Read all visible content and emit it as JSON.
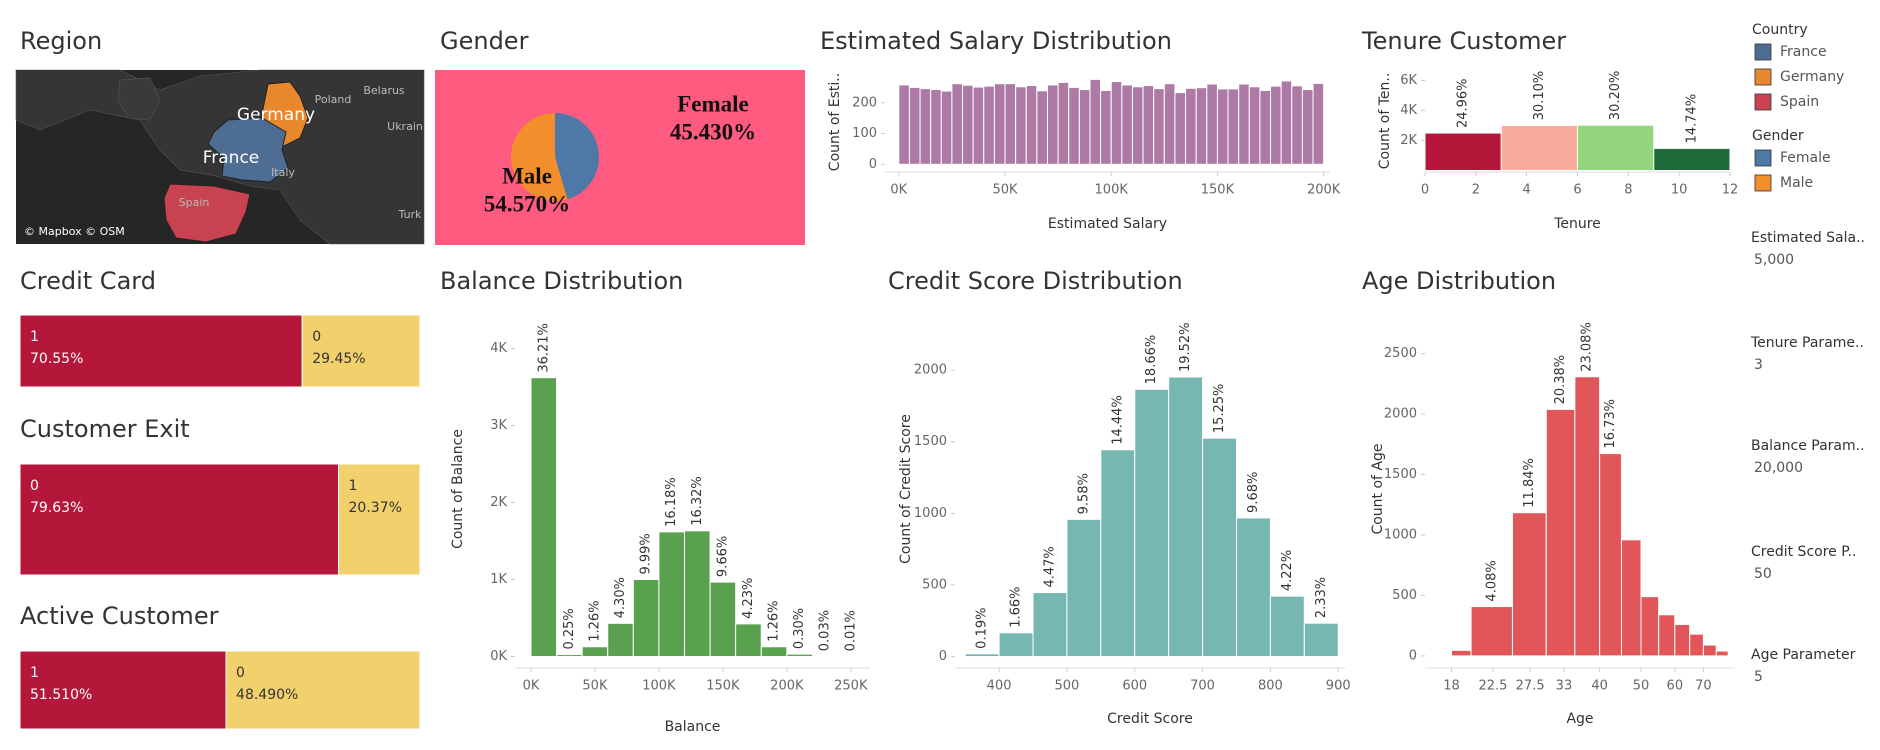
{
  "map": {
    "title": "Region",
    "labels": [
      "Germany",
      "France",
      "Poland",
      "Belarus",
      "Ukrain",
      "Italy",
      "Spain",
      "Turk"
    ],
    "attribution": "© Mapbox © OSM"
  },
  "legends": [
    {
      "title": "Country",
      "items": [
        {
          "name": "France",
          "color": "#4e6d93"
        },
        {
          "name": "Germany",
          "color": "#e8872b"
        },
        {
          "name": "Spain",
          "color": "#c8424f"
        }
      ]
    },
    {
      "title": "Gender",
      "items": [
        {
          "name": "Female",
          "color": "#4e79a7"
        },
        {
          "name": "Male",
          "color": "#f28e2b"
        }
      ]
    }
  ],
  "parameters": [
    {
      "label": "Estimated Sala..",
      "value": "5,000"
    },
    {
      "label": "Tenure Parame..",
      "value": "3"
    },
    {
      "label": "Balance Param..",
      "value": "20,000"
    },
    {
      "label": "Credit Score P..",
      "value": "50"
    },
    {
      "label": "Age Parameter",
      "value": "5"
    }
  ],
  "chart_data": [
    {
      "type": "pie",
      "title": "Gender",
      "categories": [
        "Female",
        "Male"
      ],
      "values": [
        45.43,
        54.57
      ],
      "value_labels": [
        "45.430%",
        "54.570%"
      ],
      "colors": [
        "#4e79a7",
        "#f28e2b"
      ]
    },
    {
      "type": "histogram",
      "title": "Estimated Salary Distribution",
      "x_label": "Estimated Salary",
      "y_label": "Count of Esti..",
      "color": "#ad7aa6",
      "bins": [
        0,
        5000,
        10000,
        15000,
        20000,
        25000,
        30000,
        35000,
        40000,
        45000,
        50000,
        55000,
        60000,
        65000,
        70000,
        75000,
        80000,
        85000,
        90000,
        95000,
        100000,
        105000,
        110000,
        115000,
        120000,
        125000,
        130000,
        135000,
        140000,
        145000,
        150000,
        155000,
        160000,
        165000,
        170000,
        175000,
        180000,
        185000,
        190000,
        195000,
        200000
      ],
      "values": [
        258,
        250,
        246,
        243,
        238,
        262,
        257,
        251,
        254,
        262,
        262,
        252,
        256,
        239,
        258,
        266,
        250,
        243,
        276,
        240,
        269,
        258,
        252,
        256,
        246,
        262,
        233,
        247,
        249,
        261,
        245,
        245,
        261,
        252,
        240,
        254,
        271,
        255,
        243,
        263
      ],
      "xlim": [
        -6500,
        203000
      ],
      "ylim": [
        -25,
        300
      ],
      "xticks": [
        {
          "value": 0,
          "label": "0K"
        },
        {
          "value": 50000,
          "label": "50K"
        },
        {
          "value": 100000,
          "label": "100K"
        },
        {
          "value": 150000,
          "label": "150K"
        },
        {
          "value": 200000,
          "label": "200K"
        }
      ],
      "yticks": [
        0,
        100,
        200
      ]
    },
    {
      "type": "histogram",
      "title": "Tenure Customer",
      "x_label": "Tenure",
      "y_label": "Count of Ten..",
      "colors": [
        "#b5173a",
        "#fbab9b",
        "#93d57f",
        "#1f6b3a"
      ],
      "bins": [
        0,
        3,
        6,
        9,
        12
      ],
      "values": [
        2496,
        3010,
        3020,
        1474
      ],
      "value_labels": [
        "24.96%",
        "30.10%",
        "30.20%",
        "14.74%"
      ],
      "xlim": [
        0,
        12
      ],
      "ylim": [
        -100,
        6700
      ],
      "xticks": [
        0,
        2,
        4,
        6,
        8,
        10,
        12
      ],
      "yticks": [
        {
          "value": 2000,
          "label": "2K"
        },
        {
          "value": 4000,
          "label": "4K"
        },
        {
          "value": 6000,
          "label": "6K"
        }
      ]
    },
    {
      "type": "histogram",
      "title": "Balance Distribution",
      "x_label": "Balance",
      "y_label": "Count of Balance",
      "color": "#59a14f",
      "bins": [
        0,
        20000,
        40000,
        60000,
        80000,
        100000,
        120000,
        140000,
        160000,
        180000,
        200000,
        220000,
        240000,
        260000
      ],
      "values": [
        3621,
        25,
        126,
        430,
        999,
        1618,
        1632,
        966,
        423,
        126,
        30,
        3,
        1
      ],
      "value_labels": [
        "36.21%",
        "0.25%",
        "1.26%",
        "4.30%",
        "9.99%",
        "16.18%",
        "16.32%",
        "9.66%",
        "4.23%",
        "1.26%",
        "0.30%",
        "0.03%",
        "0.01%"
      ],
      "xlim": [
        -12500,
        265000
      ],
      "ylim": [
        -150,
        4500
      ],
      "xticks": [
        {
          "value": 0,
          "label": "0K"
        },
        {
          "value": 50000,
          "label": "50K"
        },
        {
          "value": 100000,
          "label": "100K"
        },
        {
          "value": 150000,
          "label": "150K"
        },
        {
          "value": 200000,
          "label": "200K"
        },
        {
          "value": 250000,
          "label": "250K"
        }
      ],
      "yticks": [
        {
          "value": 0,
          "label": "0K"
        },
        {
          "value": 1000,
          "label": "1K"
        },
        {
          "value": 2000,
          "label": "2K"
        },
        {
          "value": 3000,
          "label": "3K"
        },
        {
          "value": 4000,
          "label": "4K"
        }
      ]
    },
    {
      "type": "histogram",
      "title": "Credit Score Distribution",
      "x_label": "Credit Score",
      "y_label": "Count of Credit Score",
      "color": "#76b7b2",
      "bins": [
        350,
        400,
        450,
        500,
        550,
        600,
        650,
        700,
        750,
        800,
        850,
        900
      ],
      "values": [
        19,
        166,
        447,
        958,
        1444,
        1866,
        1952,
        1525,
        968,
        422,
        233
      ],
      "value_labels": [
        "0.19%",
        "1.66%",
        "4.47%",
        "9.58%",
        "14.44%",
        "18.66%",
        "19.52%",
        "15.25%",
        "9.68%",
        "4.22%",
        "2.33%"
      ],
      "xlim": [
        335,
        910
      ],
      "ylim": [
        -80,
        2420
      ],
      "xticks": [
        400,
        500,
        600,
        700,
        800,
        900
      ],
      "yticks": [
        0,
        500,
        1000,
        1500,
        2000
      ]
    },
    {
      "type": "histogram",
      "title": "Age Distribution",
      "x_label": "Age",
      "y_label": "Count of Age",
      "color": "#e15759",
      "xlog": true,
      "bins": [
        18,
        20,
        25,
        30,
        35,
        40,
        45,
        50,
        55,
        60,
        65,
        70,
        75,
        80
      ],
      "values": [
        46,
        408,
        1184,
        2038,
        2308,
        1673,
        960,
        490,
        340,
        260,
        180,
        90,
        40
      ],
      "value_labels": [
        null,
        "4.08%",
        "11.84%",
        "20.38%",
        "23.08%",
        "16.73%",
        null,
        null,
        null,
        null,
        null,
        null,
        null
      ],
      "xlim": [
        15.6,
        83
      ],
      "ylim": [
        -100,
        2860
      ],
      "xticks": [
        18,
        22.5,
        27.5,
        33,
        40,
        50,
        60,
        70
      ],
      "yticks": [
        0,
        500,
        1000,
        1500,
        2000,
        2500
      ]
    },
    {
      "type": "stacked-bar",
      "title": "Credit Card",
      "categories": [
        "1",
        "0"
      ],
      "values": [
        70.55,
        29.45
      ],
      "value_labels": [
        "70.55%",
        "29.45%"
      ],
      "colors": [
        "#b5173a",
        "#f2d06b"
      ]
    },
    {
      "type": "stacked-bar",
      "title": "Customer Exit",
      "categories": [
        "0",
        "1"
      ],
      "values": [
        79.63,
        20.37
      ],
      "value_labels": [
        "79.63%",
        "20.37%"
      ],
      "colors": [
        "#b5173a",
        "#f2d06b"
      ]
    },
    {
      "type": "stacked-bar",
      "title": "Active Customer",
      "categories": [
        "1",
        "0"
      ],
      "values": [
        51.51,
        48.49
      ],
      "value_labels": [
        "51.510%",
        "48.490%"
      ],
      "colors": [
        "#b5173a",
        "#f2d06b"
      ]
    }
  ]
}
